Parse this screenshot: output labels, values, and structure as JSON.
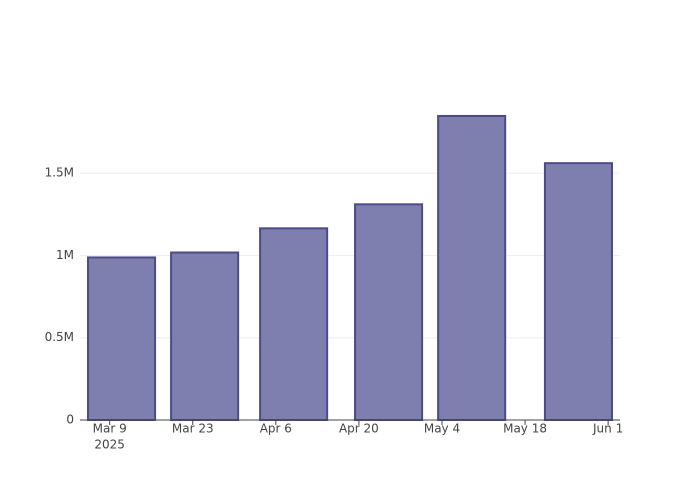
{
  "chart_data": {
    "type": "bar",
    "x": [
      "2025-03-11",
      "2025-03-25",
      "2025-04-09",
      "2025-04-25",
      "2025-05-09",
      "2025-05-27"
    ],
    "values": [
      988000,
      1018000,
      1165000,
      1311000,
      1848000,
      1561000
    ],
    "color": "#7f7faf",
    "edge_color": "#4b4b87",
    "xlim": [
      "2025-03-04",
      "2025-06-03"
    ],
    "xticks": [
      {
        "value": "2025-03-09",
        "label": "Mar 9"
      },
      {
        "value": "2025-03-23",
        "label": "Mar 23"
      },
      {
        "value": "2025-04-06",
        "label": "Apr 6"
      },
      {
        "value": "2025-04-20",
        "label": "Apr 20"
      },
      {
        "value": "2025-05-04",
        "label": "May 4"
      },
      {
        "value": "2025-05-18",
        "label": "May 18"
      },
      {
        "value": "2025-06-01",
        "label": "Jun 1"
      }
    ],
    "x_year_label": "2025",
    "ylim": [
      0,
      1945000
    ],
    "yticks": [
      0,
      {
        "value": 500000,
        "label": "0.5M"
      },
      {
        "value": 1000000,
        "label": "1M"
      },
      {
        "value": 1500000,
        "label": "1.5M"
      }
    ],
    "grid": true
  }
}
